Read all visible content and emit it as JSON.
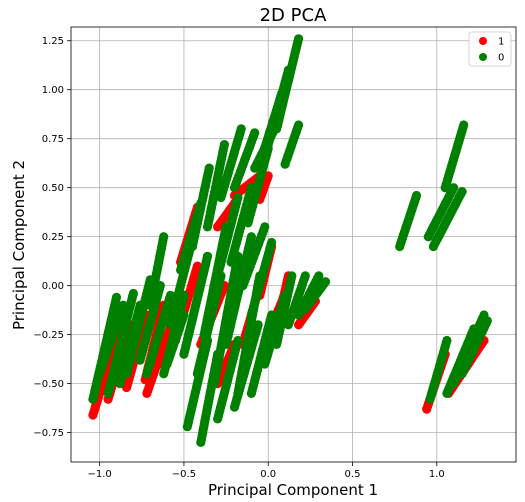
{
  "chart_data": {
    "type": "scatter",
    "title": "2D PCA",
    "xlabel": "Principal Component 1",
    "ylabel": "Principal Component 2",
    "xlim": [
      -1.17,
      1.47
    ],
    "ylim": [
      -0.9,
      1.32
    ],
    "xticks": [
      -1.0,
      -0.5,
      0.0,
      0.5,
      1.0
    ],
    "xtick_labels": [
      "−1.0",
      "−0.5",
      "0.0",
      "0.5",
      "1.0"
    ],
    "yticks": [
      -0.75,
      -0.5,
      -0.25,
      0.0,
      0.25,
      0.5,
      0.75,
      1.0,
      1.25
    ],
    "ytick_labels": [
      "−0.75",
      "−0.50",
      "−0.25",
      "0.00",
      "0.25",
      "0.50",
      "0.75",
      "1.00",
      "1.25"
    ],
    "grid": true,
    "legend_position": "top-right",
    "series": [
      {
        "name": "1",
        "color": "#ff0000",
        "strands": [
          {
            "x0": -1.04,
            "y0": -0.66,
            "x1": -0.88,
            "y1": -0.22
          },
          {
            "x0": -0.95,
            "y0": -0.58,
            "x1": -0.82,
            "y1": -0.2
          },
          {
            "x0": -0.84,
            "y0": -0.52,
            "x1": -0.72,
            "y1": -0.15
          },
          {
            "x0": -0.73,
            "y0": -0.48,
            "x1": -0.62,
            "y1": -0.1
          },
          {
            "x0": -0.65,
            "y0": -0.4,
            "x1": -0.52,
            "y1": -0.05
          },
          {
            "x0": -0.55,
            "y0": -0.28,
            "x1": -0.42,
            "y1": 0.1
          },
          {
            "x0": -0.52,
            "y0": 0.12,
            "x1": -0.42,
            "y1": 0.4
          },
          {
            "x0": -0.4,
            "y0": -0.3,
            "x1": -0.26,
            "y1": 0.0
          },
          {
            "x0": -0.2,
            "y0": 0.46,
            "x1": -0.05,
            "y1": 0.56
          },
          {
            "x0": -0.3,
            "y0": 0.3,
            "x1": -0.2,
            "y1": 0.42
          },
          {
            "x0": -0.05,
            "y0": 0.44,
            "x1": 0.0,
            "y1": 0.56
          },
          {
            "x0": -0.15,
            "y0": -0.3,
            "x1": -0.05,
            "y1": 0.0
          },
          {
            "x0": -0.05,
            "y0": -0.05,
            "x1": 0.02,
            "y1": 0.2
          },
          {
            "x0": 0.0,
            "y0": -0.25,
            "x1": 0.12,
            "y1": 0.0
          },
          {
            "x0": 0.08,
            "y0": -0.1,
            "x1": 0.12,
            "y1": 0.05
          },
          {
            "x0": 0.18,
            "y0": -0.2,
            "x1": 0.28,
            "y1": -0.08
          },
          {
            "x0": 1.07,
            "y0": -0.55,
            "x1": 1.28,
            "y1": -0.28
          },
          {
            "x0": 0.94,
            "y0": -0.63,
            "x1": 1.05,
            "y1": -0.35
          },
          {
            "x0": -0.3,
            "y0": -0.5,
            "x1": -0.2,
            "y1": -0.3
          },
          {
            "x0": -0.72,
            "y0": -0.55,
            "x1": -0.6,
            "y1": -0.25
          }
        ]
      },
      {
        "name": "0",
        "color": "#008000",
        "strands": [
          {
            "x0": -1.04,
            "y0": -0.58,
            "x1": -0.9,
            "y1": -0.06
          },
          {
            "x0": -1.0,
            "y0": -0.45,
            "x1": -0.86,
            "y1": -0.1
          },
          {
            "x0": -0.95,
            "y0": -0.55,
            "x1": -0.8,
            "y1": -0.04
          },
          {
            "x0": -0.88,
            "y0": -0.5,
            "x1": -0.76,
            "y1": -0.1
          },
          {
            "x0": -0.84,
            "y0": -0.45,
            "x1": -0.7,
            "y1": 0.03
          },
          {
            "x0": -0.76,
            "y0": -0.38,
            "x1": -0.64,
            "y1": 0.0
          },
          {
            "x0": -0.72,
            "y0": -0.45,
            "x1": -0.58,
            "y1": -0.05
          },
          {
            "x0": -0.7,
            "y0": -0.1,
            "x1": -0.62,
            "y1": 0.25
          },
          {
            "x0": -0.62,
            "y0": -0.45,
            "x1": -0.5,
            "y1": -0.05
          },
          {
            "x0": -0.58,
            "y0": -0.2,
            "x1": -0.46,
            "y1": 0.2
          },
          {
            "x0": -0.52,
            "y0": 0.08,
            "x1": -0.4,
            "y1": 0.42
          },
          {
            "x0": -0.5,
            "y0": -0.35,
            "x1": -0.36,
            "y1": 0.15
          },
          {
            "x0": -0.45,
            "y0": 0.2,
            "x1": -0.35,
            "y1": 0.6
          },
          {
            "x0": -0.42,
            "y0": -0.45,
            "x1": -0.28,
            "y1": 0.05
          },
          {
            "x0": -0.38,
            "y0": -0.25,
            "x1": -0.25,
            "y1": 0.3
          },
          {
            "x0": -0.36,
            "y0": 0.3,
            "x1": -0.26,
            "y1": 0.72
          },
          {
            "x0": -0.32,
            "y0": -0.5,
            "x1": -0.18,
            "y1": 0.15
          },
          {
            "x0": -0.3,
            "y0": 0.05,
            "x1": -0.18,
            "y1": 0.45
          },
          {
            "x0": -0.28,
            "y0": 0.45,
            "x1": -0.16,
            "y1": 0.8
          },
          {
            "x0": -0.25,
            "y0": -0.3,
            "x1": -0.1,
            "y1": 0.25
          },
          {
            "x0": -0.22,
            "y0": 0.12,
            "x1": -0.1,
            "y1": 0.5
          },
          {
            "x0": -0.2,
            "y0": 0.5,
            "x1": -0.08,
            "y1": 0.78
          },
          {
            "x0": -0.18,
            "y0": -0.55,
            "x1": -0.05,
            "y1": 0.05
          },
          {
            "x0": -0.15,
            "y0": 0.0,
            "x1": -0.02,
            "y1": 0.3
          },
          {
            "x0": -0.12,
            "y0": 0.32,
            "x1": 0.0,
            "y1": 0.7
          },
          {
            "x0": -0.08,
            "y0": 0.6,
            "x1": 0.05,
            "y1": 0.82
          },
          {
            "x0": -0.1,
            "y0": -0.15,
            "x1": 0.02,
            "y1": 0.22
          },
          {
            "x0": -0.05,
            "y0": 0.62,
            "x1": 0.08,
            "y1": 0.98
          },
          {
            "x0": 0.0,
            "y0": 0.72,
            "x1": 0.12,
            "y1": 1.1
          },
          {
            "x0": 0.05,
            "y0": 0.8,
            "x1": 0.18,
            "y1": 1.26
          },
          {
            "x0": 0.1,
            "y0": 0.62,
            "x1": 0.18,
            "y1": 0.82
          },
          {
            "x0": -0.4,
            "y0": -0.8,
            "x1": -0.3,
            "y1": -0.35
          },
          {
            "x0": -0.48,
            "y0": -0.72,
            "x1": -0.36,
            "y1": -0.28
          },
          {
            "x0": -0.3,
            "y0": -0.68,
            "x1": -0.18,
            "y1": -0.28
          },
          {
            "x0": -0.2,
            "y0": -0.62,
            "x1": -0.06,
            "y1": -0.2
          },
          {
            "x0": -0.1,
            "y0": -0.55,
            "x1": 0.02,
            "y1": -0.15
          },
          {
            "x0": -0.02,
            "y0": -0.4,
            "x1": 0.1,
            "y1": -0.05
          },
          {
            "x0": 0.05,
            "y0": -0.3,
            "x1": 0.14,
            "y1": 0.05
          },
          {
            "x0": 0.12,
            "y0": -0.2,
            "x1": 0.22,
            "y1": 0.05
          },
          {
            "x0": 0.18,
            "y0": -0.15,
            "x1": 0.3,
            "y1": 0.05
          },
          {
            "x0": 0.22,
            "y0": -0.12,
            "x1": 0.34,
            "y1": 0.02
          },
          {
            "x0": -0.6,
            "y0": -0.4,
            "x1": -0.5,
            "y1": -0.15
          },
          {
            "x0": 0.78,
            "y0": 0.2,
            "x1": 0.88,
            "y1": 0.46
          },
          {
            "x0": 0.95,
            "y0": 0.25,
            "x1": 1.1,
            "y1": 0.5
          },
          {
            "x0": 0.98,
            "y0": 0.2,
            "x1": 1.15,
            "y1": 0.48
          },
          {
            "x0": 1.05,
            "y0": 0.5,
            "x1": 1.16,
            "y1": 0.82
          },
          {
            "x0": 0.96,
            "y0": -0.58,
            "x1": 1.06,
            "y1": -0.28
          },
          {
            "x0": 1.06,
            "y0": -0.55,
            "x1": 1.22,
            "y1": -0.22
          },
          {
            "x0": 1.1,
            "y0": -0.5,
            "x1": 1.28,
            "y1": -0.15
          },
          {
            "x0": 1.15,
            "y0": -0.45,
            "x1": 1.3,
            "y1": -0.18
          }
        ]
      }
    ]
  }
}
